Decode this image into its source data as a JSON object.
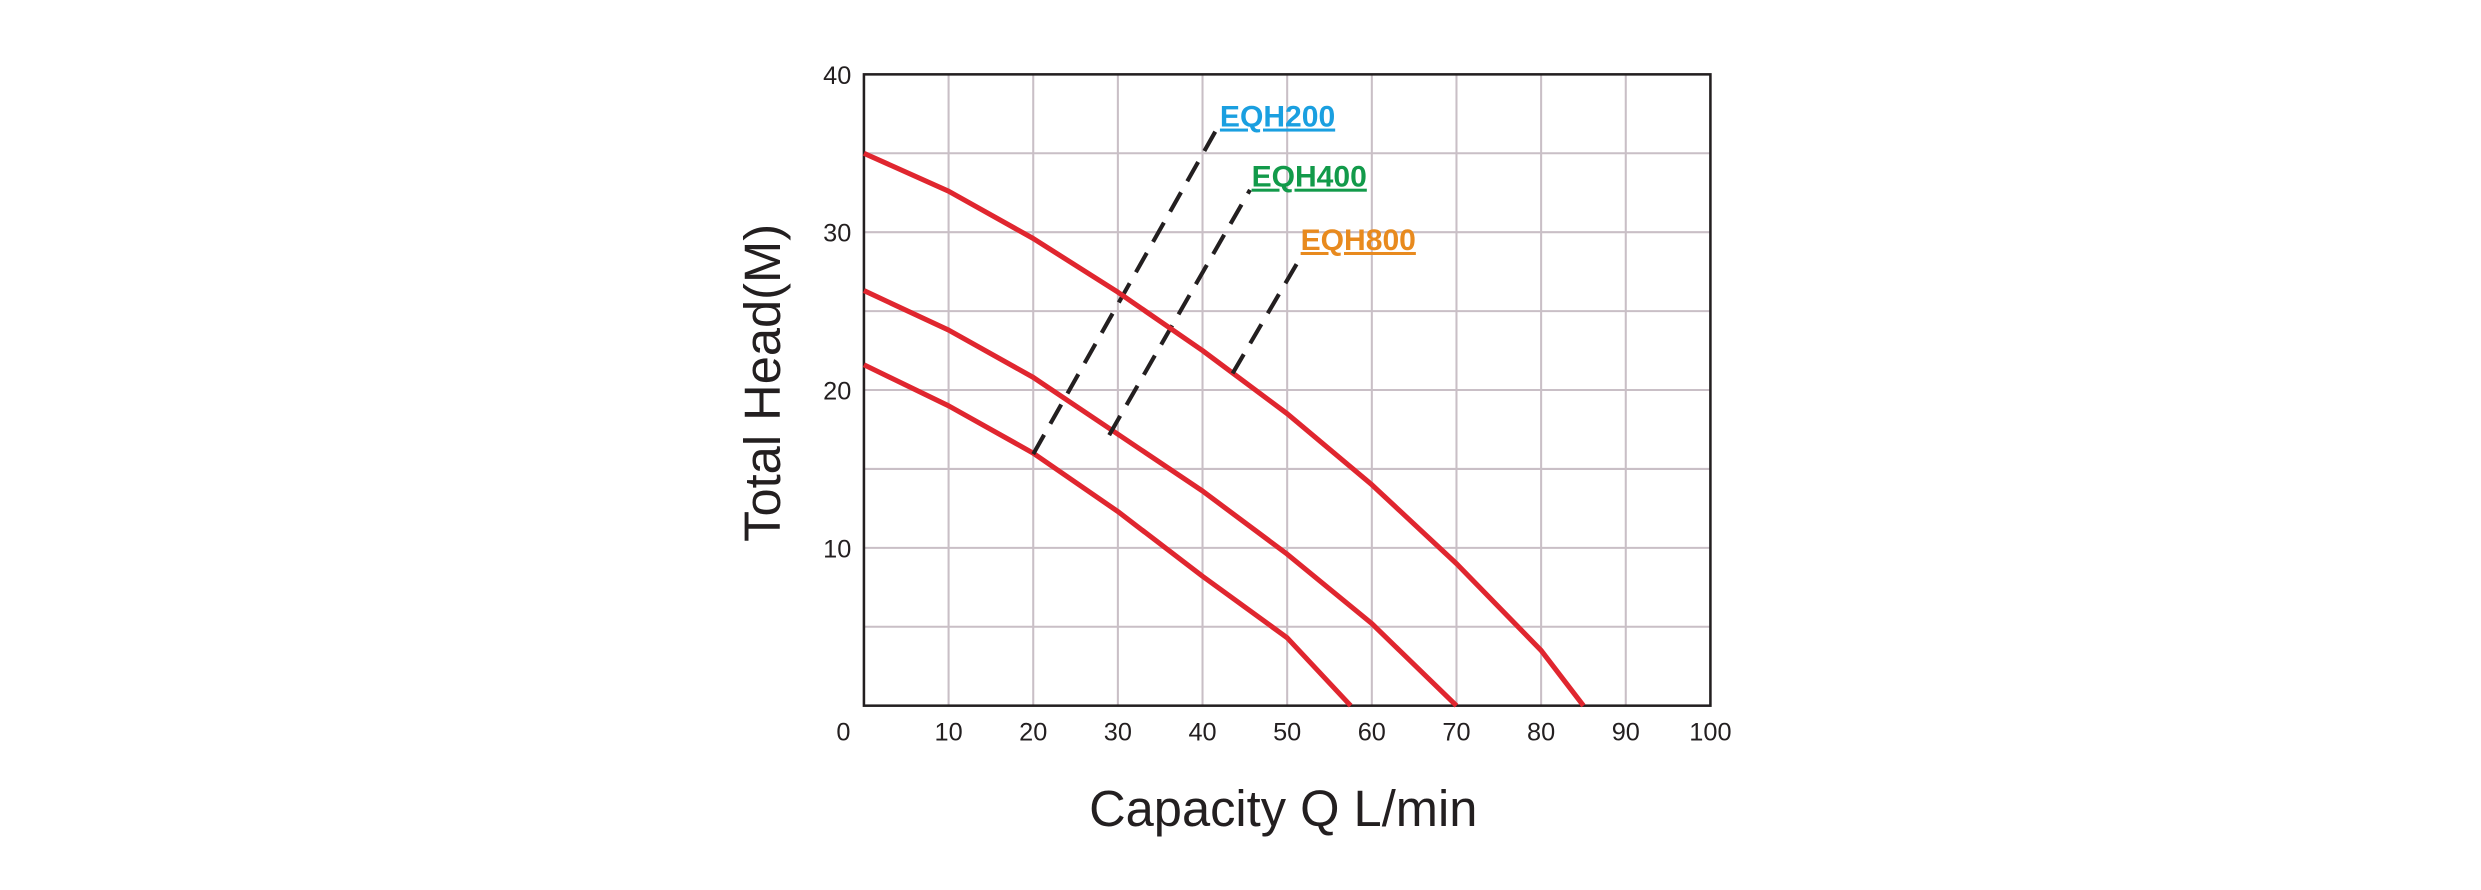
{
  "chart_data": {
    "type": "line",
    "x_label": "Capacity   Q L/min",
    "y_label": "Total  Head(M)",
    "xlim": [
      0,
      100
    ],
    "xticks": [
      0,
      10,
      20,
      30,
      40,
      50,
      60,
      70,
      80,
      90,
      100
    ],
    "ylim": [
      0,
      40
    ],
    "yticks": [
      10,
      20,
      30,
      40
    ],
    "y_minor_ticks": [
      5,
      15,
      25,
      35
    ],
    "grid": true,
    "series": [
      {
        "name": "EQH200",
        "color": "#e0262f",
        "label_color": "#1a9fe0",
        "x": [
          0,
          10,
          20,
          30,
          40,
          50,
          57.5
        ],
        "values": [
          21.6,
          19,
          16,
          12.3,
          8.2,
          4.3,
          0
        ]
      },
      {
        "name": "EQH400",
        "color": "#e0262f",
        "label_color": "#129a4a",
        "x": [
          0,
          10,
          20,
          30,
          40,
          50,
          60,
          70
        ],
        "values": [
          26.3,
          23.8,
          20.8,
          17.2,
          13.6,
          9.6,
          5.2,
          0
        ]
      },
      {
        "name": "EQH800",
        "color": "#e0262f",
        "label_color": "#e88a1e",
        "x": [
          0,
          10,
          20,
          30,
          40,
          50,
          60,
          70,
          80,
          85
        ],
        "values": [
          35,
          32.6,
          29.6,
          26.2,
          22.5,
          18.5,
          14,
          9,
          3.5,
          0
        ]
      }
    ]
  }
}
